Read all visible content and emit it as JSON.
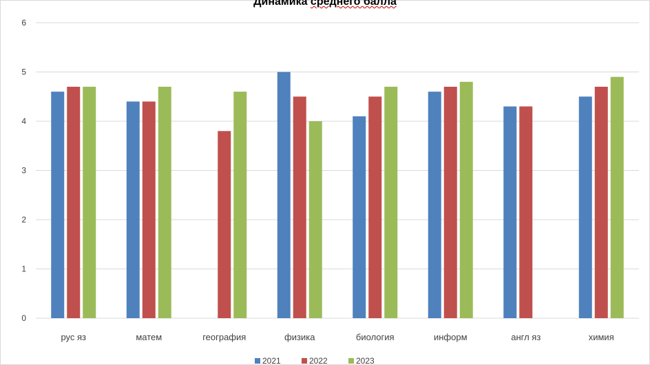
{
  "chart_data": {
    "type": "bar",
    "title_pre": "Динамика ",
    "title_underlined": "среднего балла",
    "title_post": "",
    "categories": [
      "рус яз",
      "матем",
      "география",
      "физика",
      "биология",
      "информ",
      "англ яз",
      "химия"
    ],
    "series": [
      {
        "name": "2021",
        "color": "#4f81bd",
        "values": [
          4.6,
          4.4,
          null,
          5.0,
          4.1,
          4.6,
          4.3,
          4.5
        ]
      },
      {
        "name": "2022",
        "color": "#c0504d",
        "values": [
          4.7,
          4.4,
          3.8,
          4.5,
          4.5,
          4.7,
          4.3,
          4.7
        ]
      },
      {
        "name": "2023",
        "color": "#9bbb59",
        "values": [
          4.7,
          4.7,
          4.6,
          4.0,
          4.7,
          4.8,
          null,
          4.9
        ]
      }
    ],
    "ylim": [
      0,
      6
    ],
    "yticks": [
      0,
      1,
      2,
      3,
      4,
      5,
      6
    ],
    "grid": true,
    "legend_position": "bottom",
    "xlabel": "",
    "ylabel": ""
  }
}
